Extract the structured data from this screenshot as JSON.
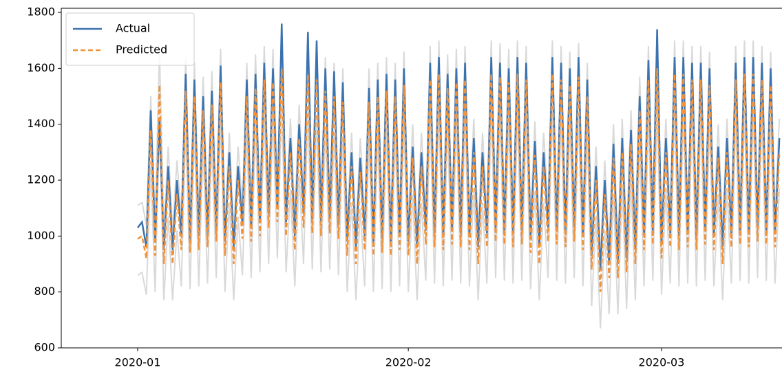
{
  "chart_data": {
    "type": "line",
    "x": [
      0,
      0.5,
      1,
      1.5,
      2,
      2.5,
      3,
      3.5,
      4,
      4.5,
      5,
      5.5,
      6,
      6.5,
      7,
      7.5,
      8,
      8.5,
      9,
      9.5,
      10,
      10.5,
      11,
      11.5,
      12,
      12.5,
      13,
      13.5,
      14,
      14.5,
      15,
      15.5,
      16,
      16.5,
      17,
      17.5,
      18,
      18.5,
      19,
      19.5,
      20,
      20.5,
      21,
      21.5,
      22,
      22.5,
      23,
      23.5,
      24,
      24.5,
      25,
      25.5,
      26,
      26.5,
      27,
      27.5,
      28,
      28.5,
      29,
      29.5,
      30,
      30.5,
      31,
      31.5,
      32,
      32.5,
      33,
      33.5,
      34,
      34.5,
      35,
      35.5,
      36,
      36.5,
      37,
      37.5,
      38,
      38.5,
      39,
      39.5,
      40,
      40.5,
      41,
      41.5,
      42,
      42.5,
      43,
      43.5,
      44,
      44.5,
      45,
      45.5,
      46,
      46.5,
      47,
      47.5,
      48,
      48.5,
      49,
      49.5,
      50,
      50.5,
      51,
      51.5,
      52,
      52.5,
      53,
      53.5,
      54,
      54.5,
      55,
      55.5,
      56,
      56.5,
      57,
      57.5,
      58,
      58.5,
      59,
      59.5,
      60,
      60.5,
      61,
      61.5,
      62,
      62.5,
      63,
      63.5,
      64,
      64.5,
      65,
      65.5,
      66,
      66.5,
      67,
      67.5,
      68,
      68.5,
      69,
      69.5,
      70,
      70.5,
      71,
      71.5,
      72,
      72.5,
      73,
      73.5
    ],
    "series": [
      {
        "name": "Actual",
        "color": "#3a72b0",
        "dash": false,
        "values": [
          1030,
          1050,
          960,
          1450,
          980,
          1420,
          950,
          1250,
          950,
          1200,
          1000,
          1580,
          980,
          1560,
          1000,
          1500,
          1000,
          1520,
          1020,
          1610,
          980,
          1300,
          960,
          1250,
          1040,
          1560,
          1030,
          1580,
          1050,
          1620,
          1080,
          1600,
          1100,
          1760,
          1050,
          1350,
          1000,
          1400,
          1080,
          1730,
          1060,
          1700,
          1050,
          1600,
          1060,
          1590,
          1040,
          1550,
          980,
          1300,
          960,
          1280,
          1000,
          1530,
          980,
          1560,
          990,
          1580,
          980,
          1560,
          1000,
          1600,
          980,
          1320,
          960,
          1300,
          1020,
          1620,
          1010,
          1640,
          1000,
          1580,
          1020,
          1600,
          1010,
          1620,
          1000,
          1350,
          960,
          1300,
          1010,
          1640,
          1030,
          1620,
          1020,
          1600,
          1010,
          1640,
          1020,
          1620,
          990,
          1340,
          960,
          1300,
          1030,
          1640,
          1020,
          1620,
          1010,
          1600,
          1030,
          1640,
          1000,
          1560,
          930,
          1250,
          880,
          1200,
          900,
          1330,
          900,
          1350,
          920,
          1380,
          950,
          1500,
          1000,
          1630,
          1020,
          1740,
          970,
          1350,
          1010,
          1640,
          1000,
          1640,
          1010,
          1620,
          1000,
          1620,
          1020,
          1600,
          1000,
          1320,
          960,
          1350,
          1010,
          1620,
          1020,
          1640,
          1010,
          1640,
          1030,
          1620,
          1020,
          1600,
          1010,
          1350
        ]
      },
      {
        "name": "Predicted",
        "color": "#f0923a",
        "dash": true,
        "values": [
          990,
          1000,
          920,
          1380,
          930,
          1540,
          900,
          1200,
          900,
          1150,
          950,
          1520,
          940,
          1500,
          950,
          1450,
          960,
          1470,
          980,
          1550,
          930,
          1250,
          900,
          1200,
          990,
          1500,
          980,
          1530,
          1000,
          1560,
          1030,
          1550,
          1050,
          1600,
          1000,
          1300,
          950,
          1350,
          1030,
          1580,
          1010,
          1560,
          1000,
          1520,
          1010,
          1500,
          990,
          1480,
          930,
          1250,
          900,
          1230,
          950,
          1480,
          930,
          1500,
          940,
          1520,
          930,
          1500,
          950,
          1540,
          930,
          1280,
          900,
          1250,
          970,
          1560,
          960,
          1580,
          950,
          1530,
          970,
          1550,
          960,
          1560,
          950,
          1300,
          900,
          1250,
          960,
          1580,
          980,
          1570,
          970,
          1550,
          960,
          1580,
          970,
          1560,
          940,
          1290,
          900,
          1250,
          980,
          1580,
          970,
          1560,
          960,
          1540,
          980,
          1570,
          950,
          1500,
          880,
          1200,
          800,
          1150,
          850,
          1280,
          850,
          1300,
          870,
          1330,
          900,
          1450,
          950,
          1560,
          970,
          1600,
          920,
          1300,
          960,
          1580,
          950,
          1580,
          960,
          1560,
          950,
          1560,
          970,
          1540,
          950,
          1280,
          900,
          1300,
          960,
          1560,
          970,
          1580,
          960,
          1580,
          980,
          1560,
          970,
          1540,
          960,
          1300
        ]
      }
    ],
    "band": {
      "color": "#d9d9d9",
      "lower": [
        860,
        870,
        790,
        1250,
        800,
        1410,
        770,
        1070,
        770,
        1020,
        820,
        1390,
        810,
        1370,
        820,
        1320,
        830,
        1340,
        850,
        1420,
        800,
        1120,
        770,
        1070,
        860,
        1370,
        850,
        1400,
        870,
        1430,
        900,
        1420,
        920,
        1470,
        870,
        1170,
        820,
        1220,
        900,
        1450,
        880,
        1430,
        870,
        1390,
        880,
        1370,
        860,
        1350,
        800,
        1120,
        770,
        1100,
        820,
        1350,
        800,
        1370,
        810,
        1390,
        800,
        1370,
        820,
        1410,
        800,
        1150,
        770,
        1120,
        840,
        1430,
        830,
        1450,
        820,
        1400,
        840,
        1420,
        830,
        1430,
        820,
        1170,
        770,
        1120,
        830,
        1450,
        850,
        1440,
        840,
        1420,
        830,
        1450,
        840,
        1430,
        810,
        1160,
        770,
        1120,
        850,
        1450,
        840,
        1430,
        830,
        1410,
        850,
        1440,
        820,
        1370,
        750,
        1070,
        670,
        1020,
        720,
        1150,
        720,
        1170,
        740,
        1200,
        770,
        1320,
        820,
        1430,
        840,
        1470,
        790,
        1170,
        830,
        1450,
        820,
        1450,
        830,
        1430,
        820,
        1430,
        840,
        1410,
        820,
        1150,
        770,
        1170,
        830,
        1430,
        840,
        1450,
        830,
        1450,
        850,
        1430,
        840,
        1410,
        830,
        1170
      ],
      "upper": [
        1110,
        1120,
        1040,
        1500,
        1050,
        1660,
        1020,
        1320,
        1020,
        1270,
        1070,
        1640,
        1060,
        1620,
        1070,
        1570,
        1080,
        1590,
        1100,
        1670,
        1050,
        1370,
        1020,
        1320,
        1110,
        1620,
        1100,
        1650,
        1120,
        1680,
        1150,
        1670,
        1170,
        1720,
        1120,
        1420,
        1070,
        1470,
        1150,
        1700,
        1130,
        1680,
        1120,
        1640,
        1130,
        1620,
        1110,
        1600,
        1050,
        1370,
        1020,
        1350,
        1070,
        1600,
        1050,
        1620,
        1060,
        1640,
        1050,
        1620,
        1070,
        1660,
        1050,
        1400,
        1020,
        1370,
        1090,
        1680,
        1080,
        1700,
        1070,
        1650,
        1090,
        1670,
        1080,
        1680,
        1070,
        1420,
        1020,
        1370,
        1080,
        1700,
        1100,
        1690,
        1090,
        1670,
        1080,
        1700,
        1090,
        1680,
        1060,
        1410,
        1020,
        1370,
        1100,
        1700,
        1090,
        1680,
        1080,
        1660,
        1100,
        1690,
        1070,
        1620,
        1000,
        1320,
        920,
        1270,
        970,
        1400,
        970,
        1420,
        990,
        1450,
        1020,
        1570,
        1070,
        1680,
        1090,
        1720,
        1040,
        1420,
        1080,
        1700,
        1070,
        1700,
        1080,
        1680,
        1070,
        1680,
        1090,
        1660,
        1070,
        1400,
        1020,
        1420,
        1080,
        1680,
        1090,
        1700,
        1080,
        1700,
        1100,
        1680,
        1090,
        1660,
        1080,
        1420
      ]
    },
    "xlim": [
      -8.75,
      73.8
    ],
    "xticks": [
      {
        "value": 0,
        "label": "2020-01"
      },
      {
        "value": 31,
        "label": "2020-02"
      },
      {
        "value": 60,
        "label": "2020-03"
      }
    ],
    "ylim": [
      600,
      1815
    ],
    "yticks": [
      600,
      800,
      1000,
      1200,
      1400,
      1600,
      1800
    ],
    "legend": "upper left"
  }
}
